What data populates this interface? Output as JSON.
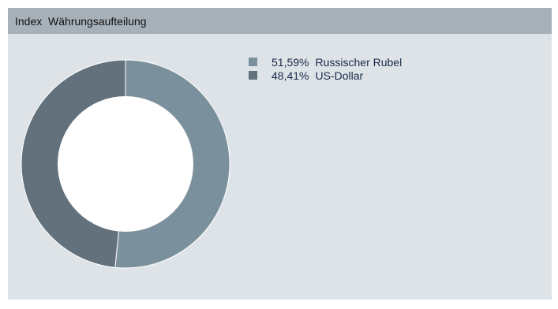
{
  "header": {
    "title": "Index  Währungsaufteilung"
  },
  "colors": {
    "panel_bg": "#dde3e7",
    "header_bg": "#a7b1b9",
    "ring_hole": "#ffffff"
  },
  "chart_data": {
    "type": "pie",
    "style": "donut",
    "title": "",
    "legend_position": "top-right",
    "slices": [
      {
        "label": "Russischer Rubel",
        "percent_text": "51,59%",
        "value": 51.59,
        "color": "#7a909c"
      },
      {
        "label": "US-Dollar",
        "percent_text": "48,41%",
        "value": 48.41,
        "color": "#62717b"
      }
    ]
  }
}
